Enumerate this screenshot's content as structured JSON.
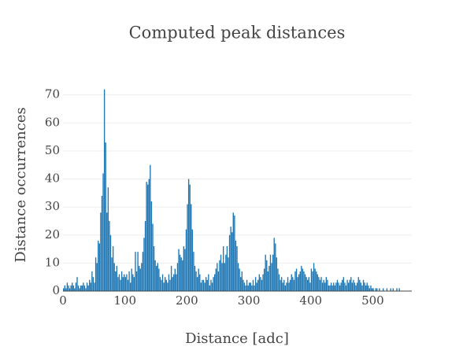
{
  "chart_data": {
    "type": "histogram",
    "title": "Computed peak distances",
    "x_label": "Distance [adc]",
    "y_label": "Distance occurrences",
    "color": "#1f77b4",
    "grid": true,
    "bins": [
      0,
      2,
      4,
      6,
      8,
      10,
      12,
      14,
      16,
      18,
      20,
      22,
      24,
      26,
      28,
      30,
      32,
      34,
      36,
      38,
      40,
      42,
      44,
      46,
      48,
      50,
      52,
      54,
      56,
      58,
      60,
      62,
      64,
      66,
      68,
      70,
      72,
      74,
      76,
      78,
      80,
      82,
      84,
      86,
      88,
      90,
      92,
      94,
      96,
      98,
      100,
      102,
      104,
      106,
      108,
      110,
      112,
      114,
      116,
      118,
      120,
      122,
      124,
      126,
      128,
      130,
      132,
      134,
      136,
      138,
      140,
      142,
      144,
      146,
      148,
      150,
      152,
      154,
      156,
      158,
      160,
      162,
      164,
      166,
      168,
      170,
      172,
      174,
      176,
      178,
      180,
      182,
      184,
      186,
      188,
      190,
      192,
      194,
      196,
      198,
      200,
      202,
      204,
      206,
      208,
      210,
      212,
      214,
      216,
      218,
      220,
      222,
      224,
      226,
      228,
      230,
      232,
      234,
      236,
      238,
      240,
      242,
      244,
      246,
      248,
      250,
      252,
      254,
      256,
      258,
      260,
      262,
      264,
      266,
      268,
      270,
      272,
      274,
      276,
      278,
      280,
      282,
      284,
      286,
      288,
      290,
      292,
      294,
      296,
      298,
      300,
      302,
      304,
      306,
      308,
      310,
      312,
      314,
      316,
      318,
      320,
      322,
      324,
      326,
      328,
      330,
      332,
      334,
      336,
      338,
      340,
      342,
      344,
      346,
      348,
      350,
      352,
      354,
      356,
      358,
      360,
      362,
      364,
      366,
      368,
      370,
      372,
      374,
      376,
      378,
      380,
      382,
      384,
      386,
      388,
      390,
      392,
      394,
      396,
      398,
      400,
      402,
      404,
      406,
      408,
      410,
      412,
      414,
      416,
      418,
      420,
      422,
      424,
      426,
      428,
      430,
      432,
      434,
      436,
      438,
      440,
      442,
      444,
      446,
      448,
      450,
      452,
      454,
      456,
      458,
      460,
      462,
      464,
      466,
      468,
      470,
      472,
      474,
      476,
      478,
      480,
      482,
      484,
      486,
      488,
      490,
      492,
      494,
      496,
      498,
      500,
      502,
      504,
      506,
      508,
      510,
      512,
      514,
      516,
      518,
      520,
      522,
      524,
      526,
      528,
      530,
      532,
      534,
      536,
      538,
      540,
      542,
      544,
      546,
      548,
      550,
      552,
      554,
      556,
      558,
      560
    ],
    "values": [
      1,
      2,
      1,
      3,
      2,
      1,
      2,
      3,
      2,
      1,
      3,
      5,
      2,
      1,
      2,
      2,
      3,
      2,
      1,
      3,
      2,
      4,
      3,
      7,
      5,
      3,
      12,
      10,
      18,
      17,
      28,
      34,
      42,
      72,
      53,
      28,
      37,
      25,
      20,
      12,
      16,
      10,
      7,
      9,
      5,
      6,
      4,
      7,
      5,
      6,
      5,
      6,
      4,
      7,
      3,
      8,
      6,
      5,
      14,
      7,
      14,
      9,
      8,
      10,
      14,
      19,
      25,
      39,
      38,
      40,
      45,
      32,
      24,
      16,
      11,
      9,
      10,
      8,
      5,
      4,
      6,
      3,
      5,
      4,
      3,
      6,
      4,
      9,
      5,
      6,
      8,
      6,
      10,
      15,
      13,
      12,
      11,
      16,
      15,
      22,
      31,
      40,
      38,
      31,
      22,
      14,
      9,
      7,
      5,
      8,
      6,
      3,
      4,
      4,
      3,
      5,
      4,
      6,
      2,
      4,
      3,
      5,
      6,
      8,
      10,
      7,
      11,
      13,
      10,
      16,
      10,
      13,
      16,
      12,
      20,
      23,
      21,
      28,
      27,
      18,
      16,
      10,
      8,
      5,
      7,
      4,
      3,
      2,
      4,
      2,
      3,
      3,
      2,
      4,
      2,
      5,
      3,
      4,
      6,
      5,
      4,
      6,
      8,
      13,
      11,
      7,
      9,
      13,
      10,
      13,
      19,
      17,
      12,
      8,
      6,
      4,
      5,
      3,
      4,
      2,
      3,
      5,
      3,
      4,
      6,
      5,
      4,
      7,
      8,
      5,
      6,
      7,
      9,
      8,
      7,
      6,
      5,
      4,
      5,
      3,
      8,
      7,
      10,
      8,
      7,
      6,
      5,
      4,
      5,
      3,
      4,
      3,
      5,
      4,
      2,
      2,
      3,
      2,
      3,
      2,
      3,
      4,
      3,
      2,
      3,
      4,
      5,
      3,
      2,
      4,
      3,
      4,
      5,
      3,
      4,
      3,
      2,
      3,
      5,
      4,
      3,
      2,
      4,
      3,
      2,
      3,
      2,
      1,
      2,
      1,
      1,
      0,
      1,
      1,
      0,
      1,
      0,
      0,
      1,
      0,
      0,
      1,
      0,
      0,
      1,
      0,
      1,
      0,
      0,
      1,
      0,
      1,
      0,
      0,
      0,
      0,
      0,
      0,
      0,
      0
    ],
    "xlim": [
      0,
      563
    ],
    "xticks": [
      0,
      100,
      200,
      300,
      400,
      500
    ],
    "ylim": [
      0,
      73
    ],
    "yticks": [
      0,
      10,
      20,
      30,
      40,
      50,
      60,
      70
    ]
  }
}
